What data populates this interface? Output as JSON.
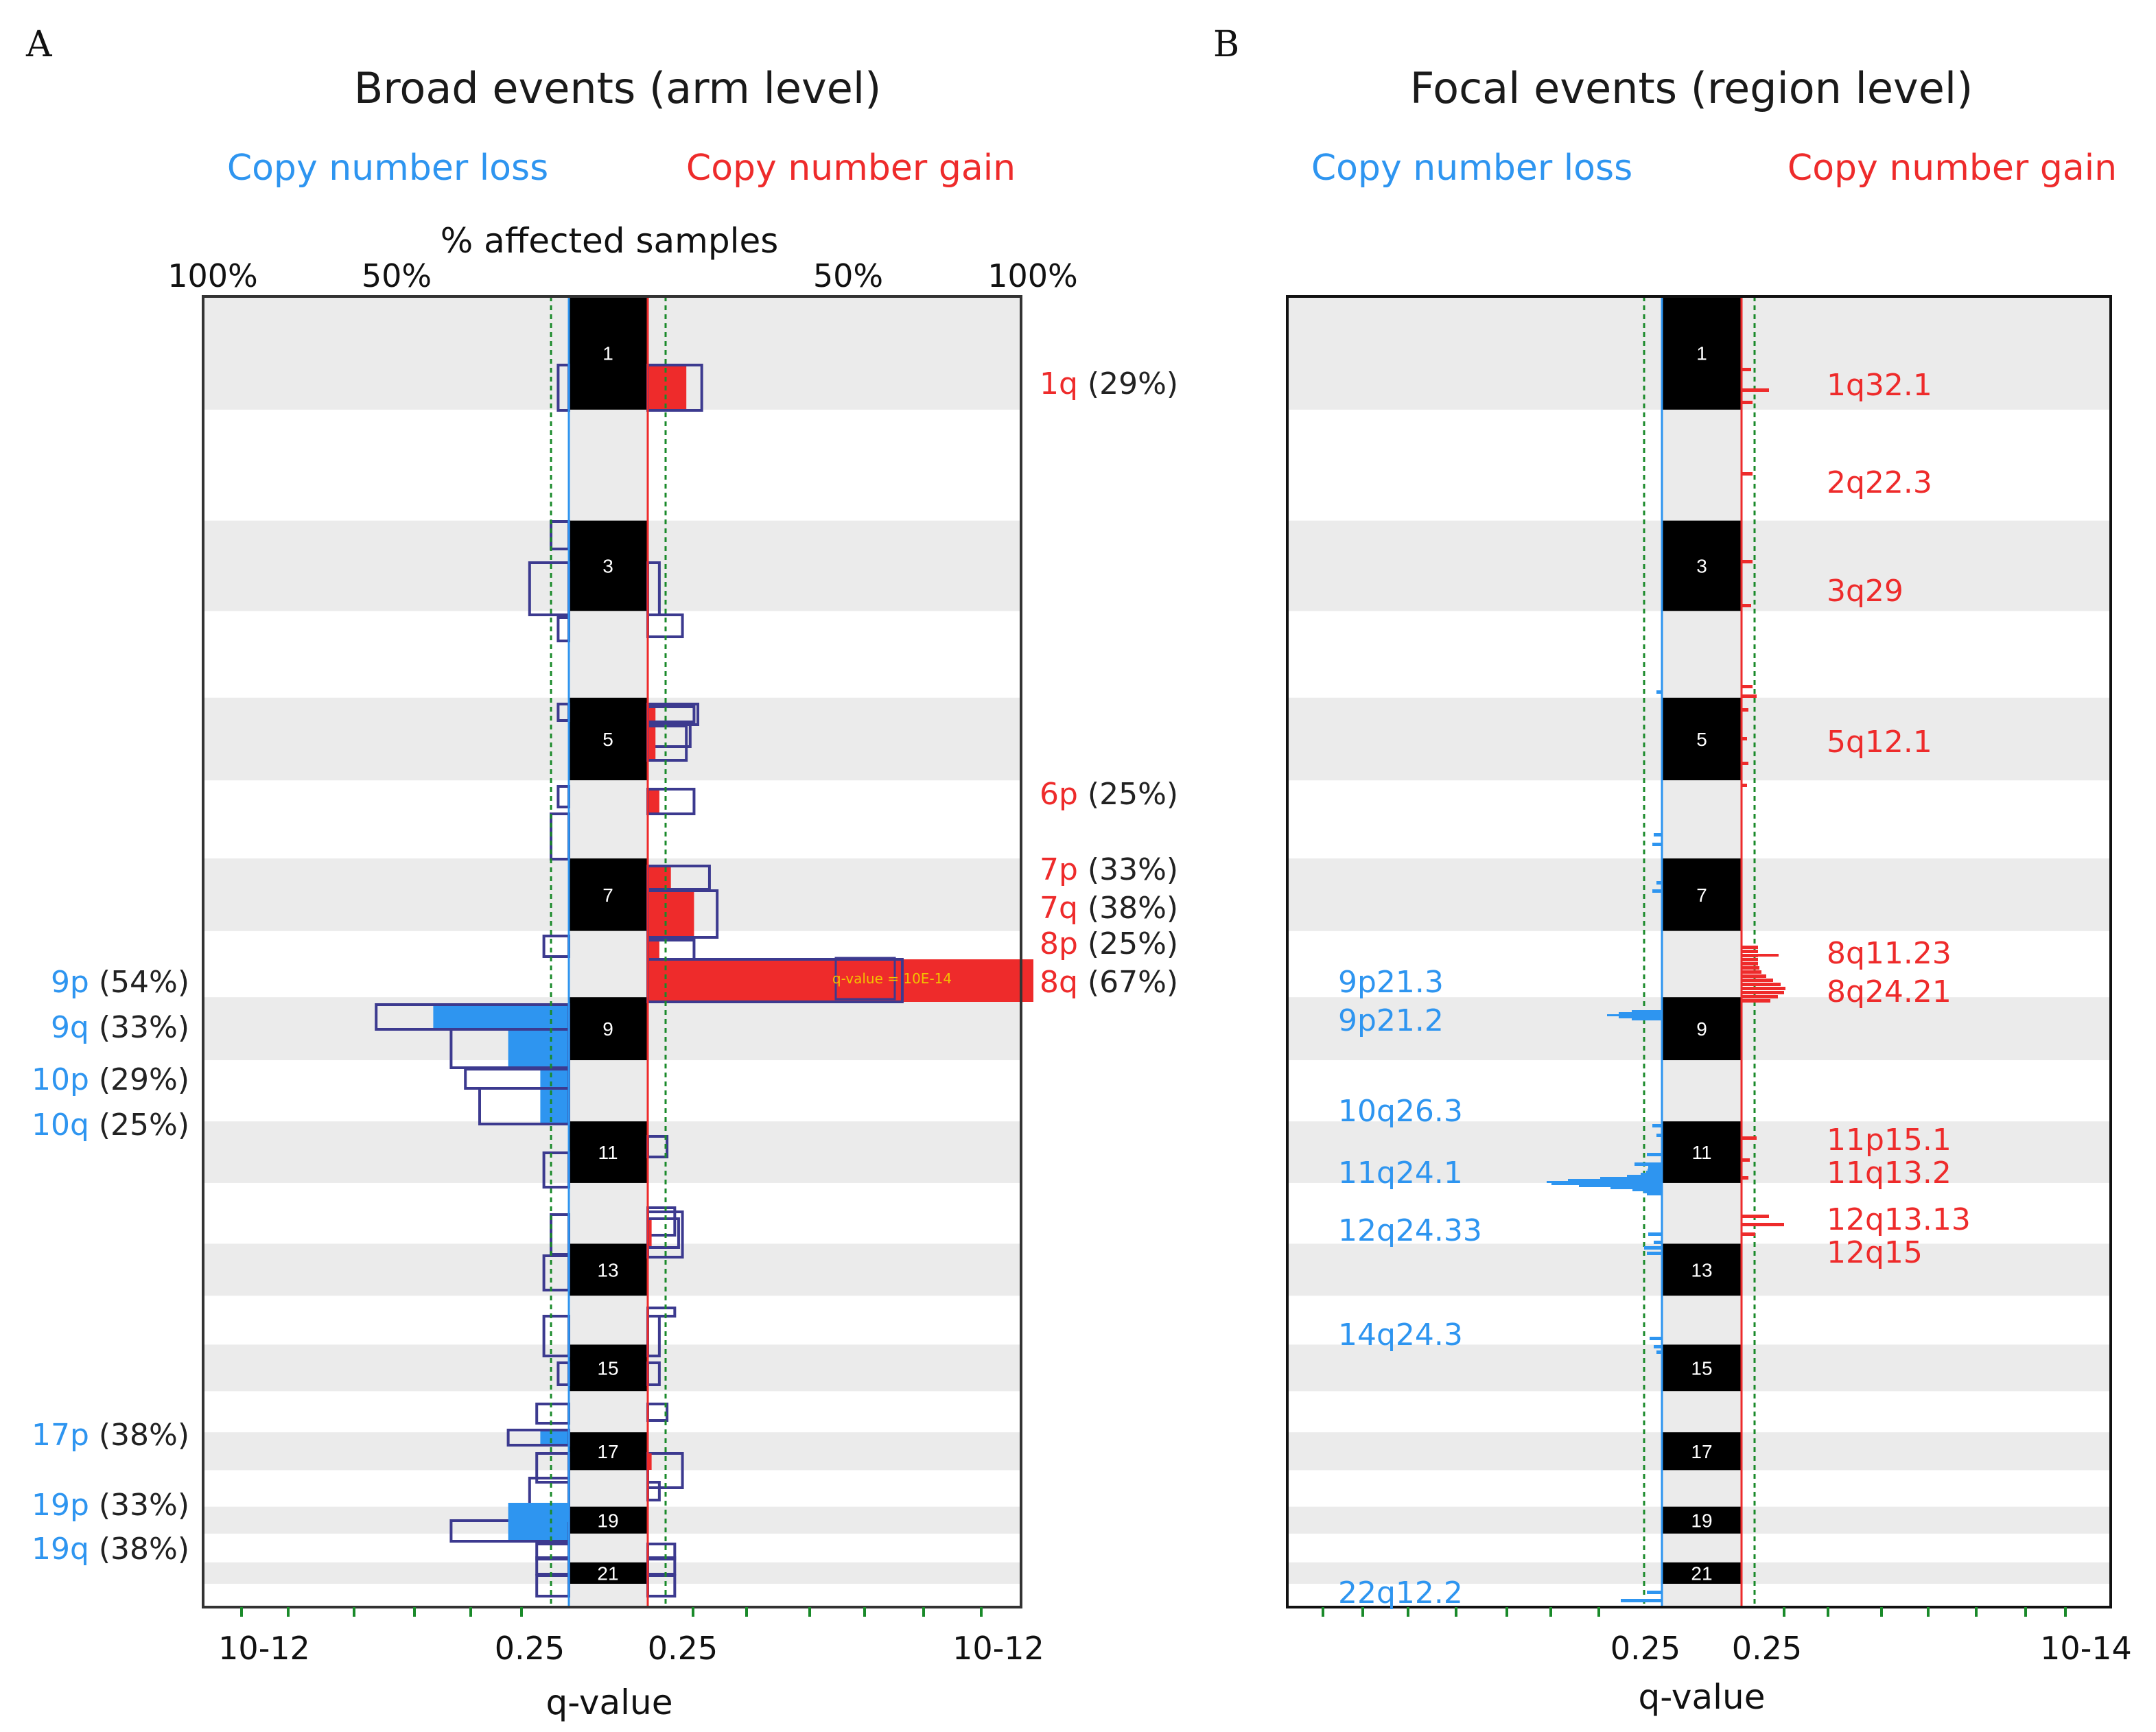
{
  "colors": {
    "loss": "#2e95f0",
    "gain": "#ee2b2b",
    "outline": "#3c3a8f",
    "band": "#ebebeb",
    "threshold": "#1a8a2a",
    "chrom": "#000000"
  },
  "chart_data": [
    {
      "panel": "A",
      "type": "bar",
      "orientation": "horizontal-diverging",
      "title": "Broad events (arm level)",
      "loss_label": "Copy number loss",
      "gain_label": "Copy number gain",
      "top_axis_label": "% affected samples",
      "top_ticks": [
        "100%",
        "50%",
        "50%",
        "100%"
      ],
      "bottom_axis_label": "q-value",
      "bottom_ticks": [
        "10-12",
        "0.25",
        "0.25",
        "10-12"
      ],
      "annotation": "q-value = 10E-14",
      "chromosomes": [
        "1",
        "2",
        "3",
        "4",
        "5",
        "6",
        "7",
        "8",
        "9",
        "10",
        "11",
        "12",
        "13",
        "14",
        "15",
        "16",
        "17",
        "18",
        "19",
        "20",
        "21",
        "22"
      ],
      "chromosome_labels_shown": [
        "1",
        "3",
        "5",
        "7",
        "9",
        "11",
        "13",
        "15",
        "17",
        "19",
        "21"
      ],
      "significant_gain": [
        {
          "arm": "1q",
          "percent": 29
        },
        {
          "arm": "6p",
          "percent": 25
        },
        {
          "arm": "7p",
          "percent": 33
        },
        {
          "arm": "7q",
          "percent": 38
        },
        {
          "arm": "8p",
          "percent": 25
        },
        {
          "arm": "8q",
          "percent": 67
        }
      ],
      "significant_loss": [
        {
          "arm": "9p",
          "percent": 54
        },
        {
          "arm": "9q",
          "percent": 33
        },
        {
          "arm": "10p",
          "percent": 29
        },
        {
          "arm": "10q",
          "percent": 25
        },
        {
          "arm": "17p",
          "percent": 38
        },
        {
          "arm": "19p",
          "percent": 33
        },
        {
          "arm": "19q",
          "percent": 38
        }
      ]
    },
    {
      "panel": "B",
      "type": "area",
      "orientation": "horizontal-diverging",
      "title": "Focal events (region level)",
      "loss_label": "Copy number loss",
      "gain_label": "Copy number gain",
      "bottom_axis_label": "q-value",
      "bottom_ticks": [
        "0.25",
        "0.25",
        "10-14"
      ],
      "chromosome_labels_shown": [
        "1",
        "3",
        "5",
        "7",
        "9",
        "11",
        "13",
        "15",
        "17",
        "19",
        "21"
      ],
      "gain_regions": [
        "1q32.1",
        "2q22.3",
        "3q29",
        "5q12.1",
        "8q11.23",
        "8q24.21",
        "11p15.1",
        "11q13.2",
        "12q13.13",
        "12q15"
      ],
      "loss_regions": [
        "9p21.3",
        "9p21.2",
        "10q26.3",
        "11q24.1",
        "12q24.33",
        "14q24.3",
        "22q12.2"
      ]
    }
  ]
}
